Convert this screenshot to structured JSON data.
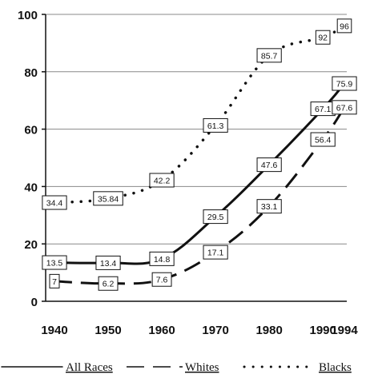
{
  "chart_data": {
    "type": "line",
    "x": [
      1940,
      1950,
      1960,
      1970,
      1980,
      1990,
      1994
    ],
    "x_tick_labels": [
      "1940",
      "1950",
      "1960",
      "1970",
      "1980",
      "1990",
      "1994"
    ],
    "y_tick_labels": [
      "0",
      "20",
      "40",
      "60",
      "80",
      "100"
    ],
    "ylim": [
      0,
      100
    ],
    "grid": "horizontal",
    "legend_position": "bottom",
    "series": [
      {
        "name": "All Races",
        "style": "solid",
        "values": [
          13.5,
          13.4,
          14.8,
          29.5,
          47.6,
          67.1,
          75.9
        ],
        "labels": [
          "13.5",
          "13.4",
          "14.8",
          "29.5",
          "47.6",
          "67.1",
          "75.9"
        ]
      },
      {
        "name": "Whites",
        "style": "dashed",
        "values": [
          7,
          6.2,
          7.6,
          17.1,
          33.1,
          56.4,
          67.6
        ],
        "labels": [
          "7",
          "6.2",
          "7.6",
          "17.1",
          "33.1",
          "56.4",
          "67.6"
        ]
      },
      {
        "name": "Blacks",
        "style": "dotted",
        "values": [
          34.4,
          35.84,
          42.2,
          61.3,
          85.7,
          92,
          96
        ],
        "labels": [
          "34.4",
          "35.84",
          "42.2",
          "61.3",
          "85.7",
          "92",
          "96"
        ]
      }
    ],
    "colors": {
      "line": "#111111",
      "grid": "#888888",
      "background": "#ffffff"
    }
  }
}
